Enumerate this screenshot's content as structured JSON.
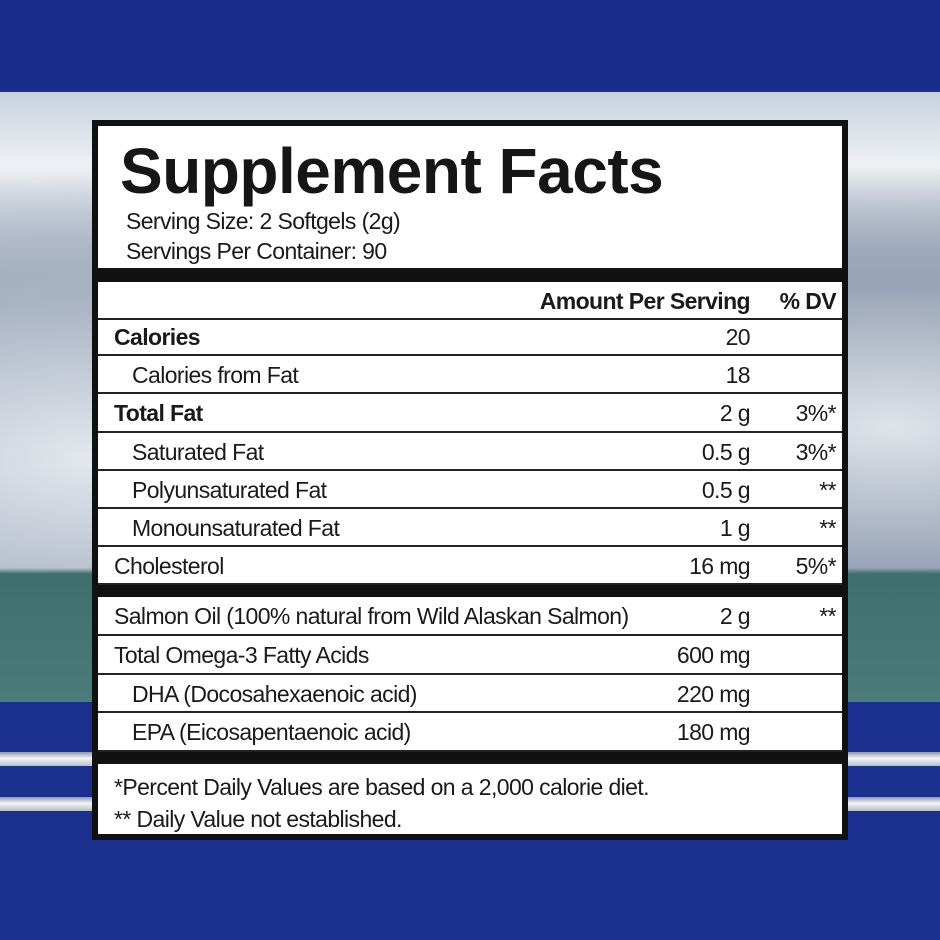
{
  "title": "Supplement Facts",
  "serving_size": "Serving Size: 2 Softgels (2g)",
  "servings_per_container": "Servings Per Container: 90",
  "header": {
    "amount": "Amount Per Serving",
    "dv": "% DV"
  },
  "nutrients": [
    {
      "name": "Calories",
      "amount": "20",
      "dv": "",
      "bold": true,
      "indent": false
    },
    {
      "name": "Calories from Fat",
      "amount": "18",
      "dv": "",
      "bold": false,
      "indent": true
    },
    {
      "name": "Total Fat",
      "amount": "2 g",
      "dv": "3%*",
      "bold": true,
      "indent": false
    },
    {
      "name": "Saturated Fat",
      "amount": "0.5 g",
      "dv": "3%*",
      "bold": false,
      "indent": true
    },
    {
      "name": "Polyunsaturated Fat",
      "amount": "0.5 g",
      "dv": "**",
      "bold": false,
      "indent": true
    },
    {
      "name": "Monounsaturated Fat",
      "amount": "1 g",
      "dv": "**",
      "bold": false,
      "indent": true
    },
    {
      "name": "Cholesterol",
      "amount": "16 mg",
      "dv": "5%*",
      "bold": false,
      "indent": false
    }
  ],
  "ingredients": [
    {
      "name": "Salmon Oil (100% natural from Wild Alaskan Salmon)",
      "amount": "2 g",
      "dv": "**",
      "indent": false
    },
    {
      "name": "Total Omega-3 Fatty Acids",
      "amount": "600 mg",
      "dv": "",
      "indent": false
    },
    {
      "name": "DHA (Docosahexaenoic acid)",
      "amount": "220 mg",
      "dv": "",
      "indent": true
    },
    {
      "name": "EPA (Eicosapentaenoic acid)",
      "amount": "180 mg",
      "dv": "",
      "indent": true
    }
  ],
  "footnotes": [
    "*Percent Daily Values are based on a 2,000 calorie diet.",
    "** Daily Value not established."
  ],
  "colors": {
    "background_blue": "#1b2f8e",
    "label_border": "#111111"
  }
}
